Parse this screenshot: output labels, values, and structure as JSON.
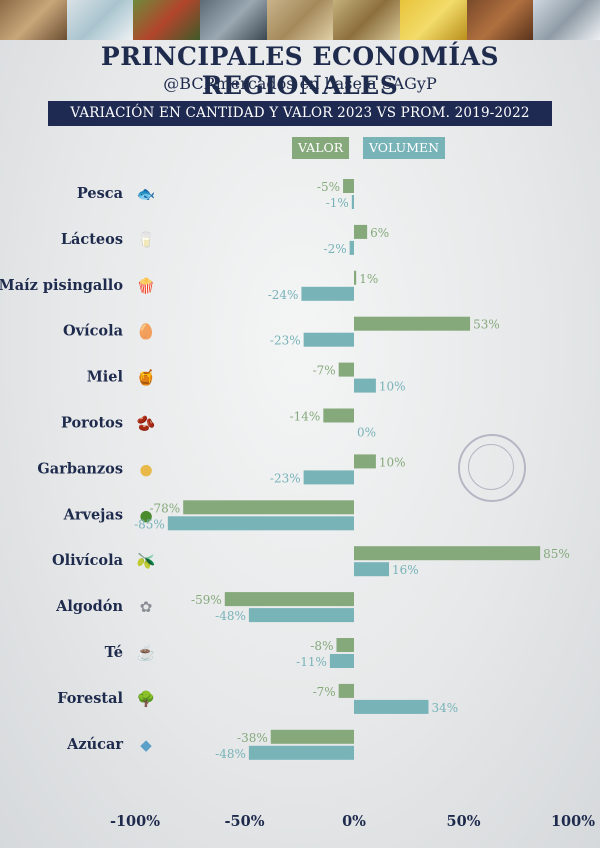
{
  "title": "PRINCIPALES ECONOMÍAS REGIONALES",
  "subtitle": "@BCRmercados en base a SAGyP",
  "banner": "VARIACIÓN EN CANTIDAD Y VALOR 2023 VS PROM. 2019-2022",
  "colors": {
    "valor": "#86a97c",
    "volumen": "#78b3b8",
    "navy": "#1f2b4d"
  },
  "chart_data": {
    "type": "bar",
    "orientation": "horizontal",
    "categories": [
      "Pesca",
      "Lácteos",
      "Maíz pisingallo",
      "Ovícola",
      "Miel",
      "Porotos",
      "Garbanzos",
      "Arvejas",
      "Olivícola",
      "Algodón",
      "Té",
      "Forestal",
      "Azúcar"
    ],
    "icons": [
      "fish-icon",
      "dairy-icon",
      "popcorn-icon",
      "egg-icon",
      "honey-jar-icon",
      "beans-icon",
      "chickpeas-icon",
      "peas-icon",
      "olive-icon",
      "cotton-icon",
      "tea-icon",
      "tree-icon",
      "sugar-cubes-icon"
    ],
    "series": [
      {
        "name": "VALOR",
        "values": [
          -5,
          6,
          1,
          53,
          -7,
          -14,
          10,
          -78,
          85,
          -59,
          -8,
          -7,
          -38
        ]
      },
      {
        "name": "VOLUMEN",
        "values": [
          -1,
          -2,
          -24,
          -23,
          10,
          0,
          -23,
          -85,
          16,
          -48,
          -11,
          34,
          -48
        ]
      }
    ],
    "value_labels": [
      [
        "-5%",
        "6%",
        "1%",
        "53%",
        "-7%",
        "-14%",
        "10%",
        "-78%",
        "85%",
        "-59%",
        "-8%",
        "-7%",
        "-38%"
      ],
      [
        "-1%",
        "-2%",
        "-24%",
        "-23%",
        "10%",
        "0%",
        "-23%",
        "-85%",
        "16%",
        "-48%",
        "-11%",
        "34%",
        "-48%"
      ]
    ],
    "xlim": [
      -100,
      100
    ],
    "xticks": [
      -100,
      -50,
      0,
      50,
      100
    ],
    "xtick_labels": [
      "-100%",
      "-50%",
      "0%",
      "50%",
      "100%"
    ],
    "legend_position": "top-center",
    "grid": false
  }
}
